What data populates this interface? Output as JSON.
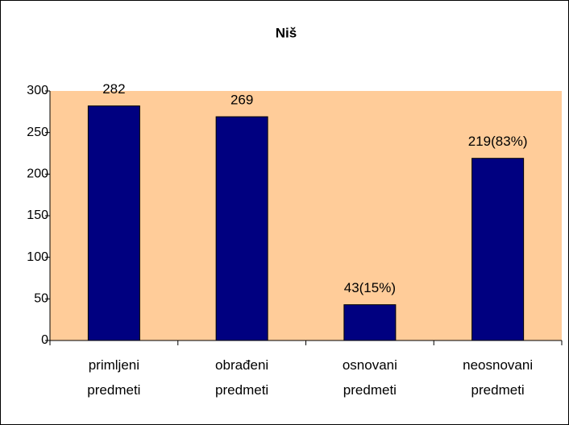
{
  "chart_data": {
    "type": "bar",
    "title": "Niš",
    "categories": [
      "primljeni predmeti",
      "obrađeni predmeti",
      "osnovani predmeti",
      "neosnovani predmeti"
    ],
    "values": [
      282,
      269,
      43,
      219
    ],
    "value_labels": [
      "282",
      "269",
      "43(15%)",
      "219(83%)"
    ],
    "color": "#000080",
    "plot_background": "#ffcc99",
    "ylim": [
      0,
      300
    ],
    "yticks": [
      0,
      50,
      100,
      150,
      200,
      250,
      300
    ]
  }
}
